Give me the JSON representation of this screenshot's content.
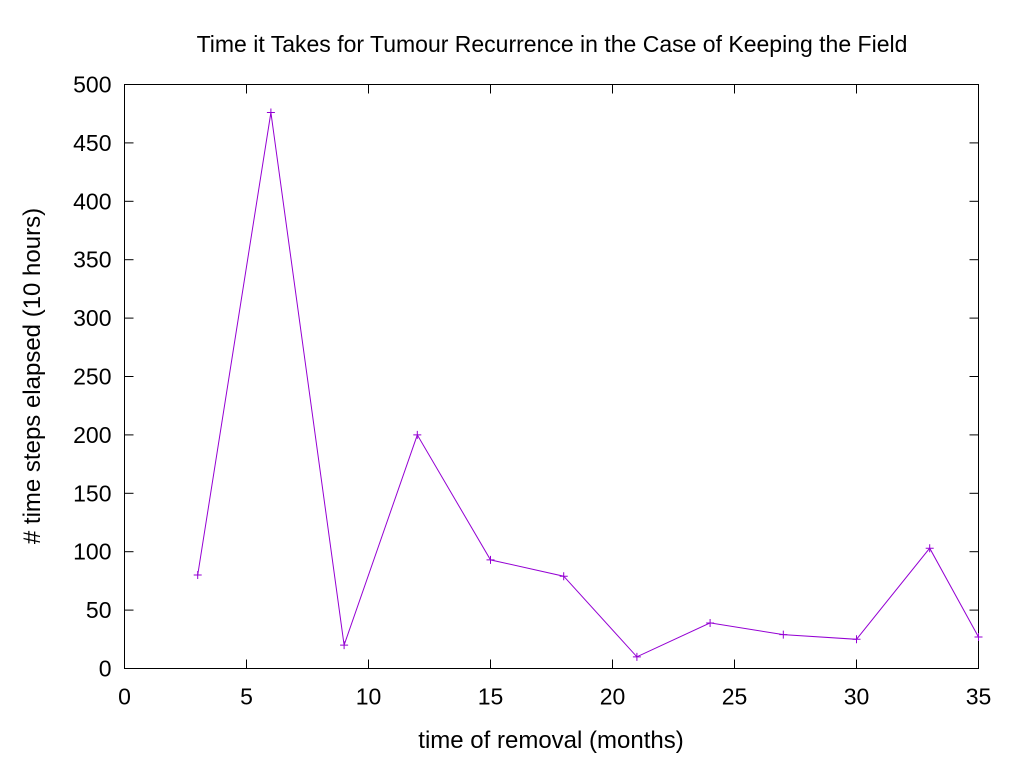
{
  "chart_data": {
    "type": "line",
    "title": "Time it Takes for Tumour Recurrence in the Case of Keeping the Field",
    "xlabel": "time of removal (months)",
    "ylabel": "# time steps elapsed (10 hours)",
    "xlim": [
      0,
      35
    ],
    "ylim": [
      0,
      500
    ],
    "xticks": [
      0,
      5,
      10,
      15,
      20,
      25,
      30,
      35
    ],
    "yticks": [
      0,
      50,
      100,
      150,
      200,
      250,
      300,
      350,
      400,
      450,
      500
    ],
    "grid": false,
    "legend": "none",
    "series": [
      {
        "color": "#9400d3",
        "marker": "plus",
        "x": [
          3,
          6,
          9,
          12,
          15,
          18,
          21,
          24,
          27,
          30,
          33,
          35
        ],
        "y": [
          80,
          476,
          20,
          200,
          93,
          79,
          10,
          39,
          29,
          25,
          103,
          27
        ]
      }
    ]
  }
}
